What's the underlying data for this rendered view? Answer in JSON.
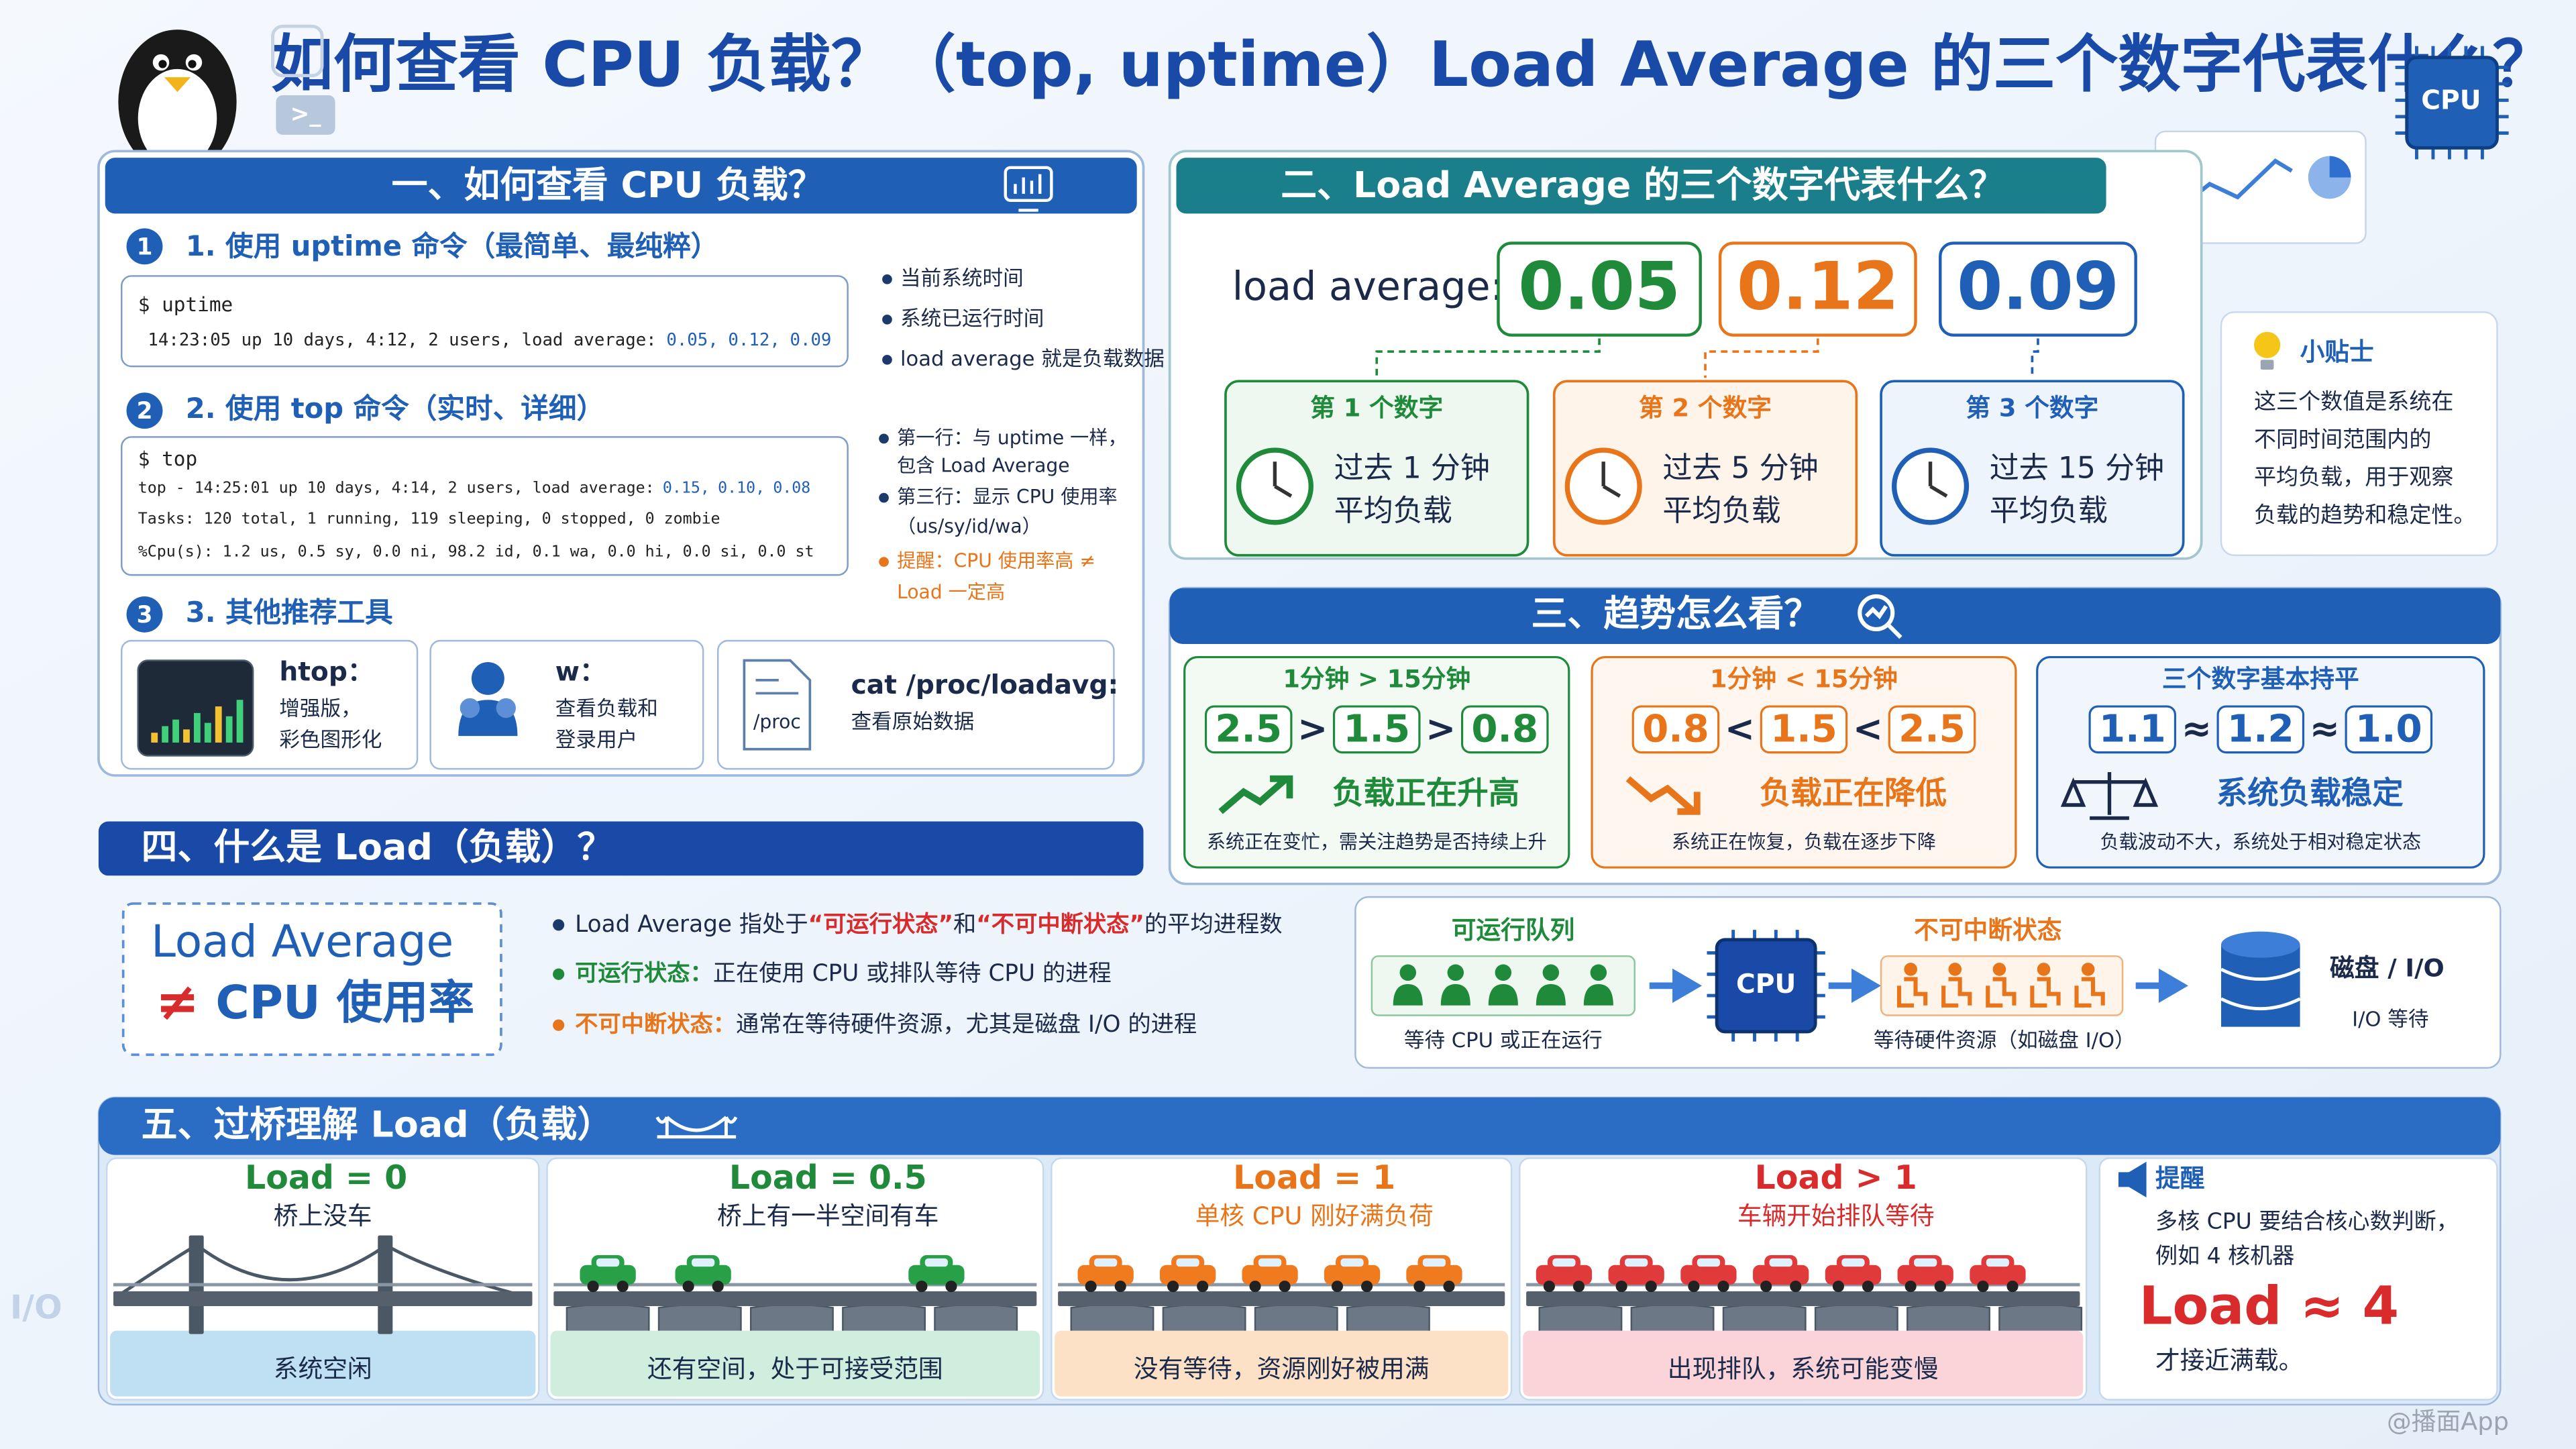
{
  "title": "如何查看 CPU 负载？（top, uptime）Load Average 的三个数字代表什么？",
  "decor": {
    "terminal": ">_",
    "cpu": "CPU",
    "side": "I/O"
  },
  "section1": {
    "heading": "一、如何查看 CPU 负载？",
    "uptime": {
      "num": "1",
      "title": "1. 使用 uptime 命令（最简单、最纯粹）",
      "cmd": "$ uptime",
      "output": "14:23:05 up 10 days, 4:12, 2 users, load average:",
      "loads": [
        "0.05,",
        "0.12,",
        "0.09"
      ],
      "notes": [
        "当前系统时间",
        "系统已运行时间",
        "load average 就是负载数据"
      ]
    },
    "top": {
      "num": "2",
      "title": "2. 使用 top 命令（实时、详细）",
      "cmd": "$ top",
      "line1": "top - 14:25:01 up 10 days, 4:14, 2 users, load average:",
      "loads": [
        "0.15,",
        "0.10,",
        "0.08"
      ],
      "line2": "Tasks: 120 total, 1 running, 119 sleeping, 0 stopped, 0 zombie",
      "line3": "%Cpu(s): 1.2 us, 0.5 sy, 0.0 ni, 98.2 id, 0.1 wa, 0.0 hi, 0.0 si, 0.0 st",
      "notes": [
        [
          "第一行：与 uptime 一样，",
          "包含 Load Average"
        ],
        [
          "第三行：显示 CPU 使用率",
          "（us/sy/id/wa）"
        ]
      ],
      "warning": [
        "提醒：CPU 使用率高 ≠",
        "Load 一定高"
      ]
    },
    "tools": {
      "num": "3",
      "title": "3. 其他推荐工具",
      "items": [
        {
          "name": "htop：",
          "desc": [
            "增强版，",
            "彩色图形化"
          ]
        },
        {
          "name": "w：",
          "desc": [
            "查看负载和",
            "登录用户"
          ]
        },
        {
          "name": "cat /proc/loadavg:",
          "icon": "/proc",
          "desc": [
            "查看原始数据"
          ]
        }
      ]
    }
  },
  "section2": {
    "heading": "二、Load Average 的三个数字代表什么？",
    "label": "load average:",
    "numbers": [
      {
        "value": "0.05",
        "title": "第 1 个数字",
        "desc": [
          "过去 1 分钟",
          "平均负载"
        ]
      },
      {
        "value": "0.12",
        "title": "第 2 个数字",
        "desc": [
          "过去 5 分钟",
          "平均负载"
        ]
      },
      {
        "value": "0.09",
        "title": "第 3 个数字",
        "desc": [
          "过去 15 分钟",
          "平均负载"
        ]
      }
    ],
    "tip": {
      "title": "小贴士",
      "lines": [
        "这三个数值是系统在",
        "不同时间范围内的",
        "平均负载，用于观察",
        "负载的趋势和稳定性。"
      ]
    }
  },
  "section3": {
    "heading": "三、趋势怎么看？",
    "cards": [
      {
        "title": "1分钟 > 15分钟",
        "values": [
          "2.5",
          "1.5",
          "0.8"
        ],
        "ops": [
          ">",
          ">"
        ],
        "status": "负载正在升高",
        "note": "系统正在变忙，需关注趋势是否持续上升"
      },
      {
        "title": "1分钟 < 15分钟",
        "values": [
          "0.8",
          "1.5",
          "2.5"
        ],
        "ops": [
          "<",
          "<"
        ],
        "status": "负载正在降低",
        "note": "系统正在恢复，负载在逐步下降"
      },
      {
        "title": "三个数字基本持平",
        "values": [
          "1.1",
          "1.2",
          "1.0"
        ],
        "ops": [
          "≈",
          "≈"
        ],
        "status": "系统负载稳定",
        "note": "负载波动不大，系统处于相对稳定状态"
      }
    ]
  },
  "section4": {
    "heading": "四、什么是 Load（负载）？",
    "box": [
      "Load Average",
      "≠",
      "CPU 使用率"
    ],
    "def": [
      "Load Average 指处于",
      "“可运行状态”",
      "和",
      "“不可中断状态”",
      "的平均进程数"
    ],
    "runnable": [
      "可运行状态：",
      "正在使用 CPU 或排队等待 CPU 的进程"
    ],
    "uninterruptible": [
      "不可中断状态：",
      "通常在等待硬件资源，尤其是磁盘 I/O 的进程"
    ],
    "flow": {
      "queue": "可运行队列",
      "queue_note": "等待 CPU 或正在运行",
      "cpu": "CPU",
      "blocked": "不可中断状态",
      "blocked_note": "等待硬件资源（如磁盘 I/O）",
      "disk": "磁盘 / I/O",
      "disk_note": "I/O 等待"
    }
  },
  "section5": {
    "heading": "五、过桥理解 Load（负载）",
    "panels": [
      {
        "load": "Load = 0",
        "caption": "桥上没车",
        "footer": "系统空闲"
      },
      {
        "load": "Load = 0.5",
        "caption": "桥上有一半空间有车",
        "footer": "还有空间，处于可接受范围"
      },
      {
        "load": "Load = 1",
        "caption": "单核 CPU 刚好满负荷",
        "footer": "没有等待，资源刚好被用满"
      },
      {
        "load": "Load > 1",
        "caption": "车辆开始排队等待",
        "footer": "出现排队，系统可能变慢"
      }
    ],
    "tip": {
      "title": "提醒",
      "lines": [
        "多核 CPU 要结合核心数判断，",
        "例如 4 核机器"
      ],
      "highlight": "Load ≈ 4",
      "end": "才接近满载。"
    }
  },
  "watermark": "@播面App"
}
